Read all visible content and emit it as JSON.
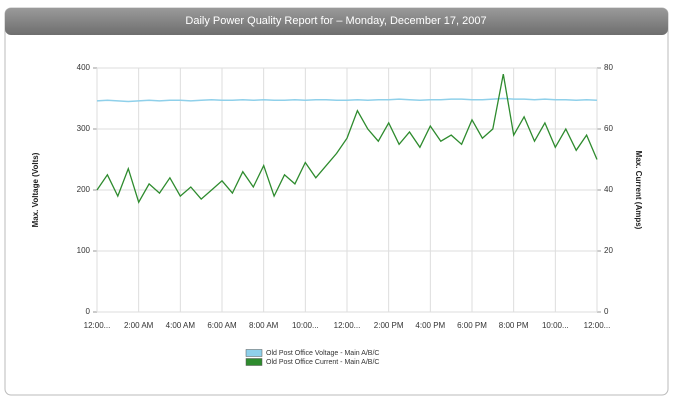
{
  "chart_data": {
    "type": "line",
    "title": "Daily Power Quality Report for  – Monday, December 17, 2007",
    "ylabel": "Max. Voltage (Volts)",
    "y2label": "Max. Current (Amps)",
    "categories": [
      "12:00...",
      null,
      null,
      null,
      "2:00 AM",
      null,
      null,
      null,
      "4:00 AM",
      null,
      null,
      null,
      "6:00 AM",
      null,
      null,
      null,
      "8:00 AM",
      null,
      null,
      null,
      "10:00...",
      null,
      null,
      null,
      "12:00...",
      null,
      null,
      null,
      "2:00 PM",
      null,
      null,
      null,
      "4:00 PM",
      null,
      null,
      null,
      "6:00 PM",
      null,
      null,
      null,
      "8:00 PM",
      null,
      null,
      null,
      "10:00...",
      null,
      null,
      null,
      "12:00..."
    ],
    "ylim": [
      0,
      400
    ],
    "yticks": [
      0,
      100,
      200,
      300,
      400
    ],
    "y2lim": [
      0,
      80
    ],
    "y2ticks": [
      0,
      20,
      40,
      60,
      80
    ],
    "grid": true,
    "legend": "bottom",
    "series": [
      {
        "name": "Old Post Office Voltage - Main A/B/C",
        "color": "#8fd0ea",
        "values": [
          346,
          347,
          346,
          345,
          346,
          347,
          346,
          347,
          347,
          346,
          347,
          348,
          347,
          347,
          348,
          347,
          348,
          347,
          347,
          348,
          347,
          348,
          348,
          347,
          347,
          348,
          347,
          348,
          348,
          349,
          348,
          347,
          348,
          348,
          349,
          349,
          348,
          348,
          349,
          350,
          349,
          349,
          348,
          349,
          348,
          348,
          347,
          348,
          347
        ]
      },
      {
        "name": "Old Post Office Current - Main A/B/C",
        "color": "#2e8b2e",
        "axis": "y2",
        "values": [
          40,
          45,
          38,
          47,
          36,
          42,
          39,
          44,
          38,
          41,
          37,
          40,
          43,
          39,
          46,
          41,
          48,
          38,
          45,
          42,
          49,
          44,
          48,
          52,
          57,
          66,
          60,
          56,
          62,
          55,
          59,
          54,
          61,
          56,
          58,
          55,
          63,
          57,
          60,
          78,
          58,
          64,
          56,
          62,
          54,
          60,
          53,
          58,
          50
        ]
      }
    ]
  }
}
